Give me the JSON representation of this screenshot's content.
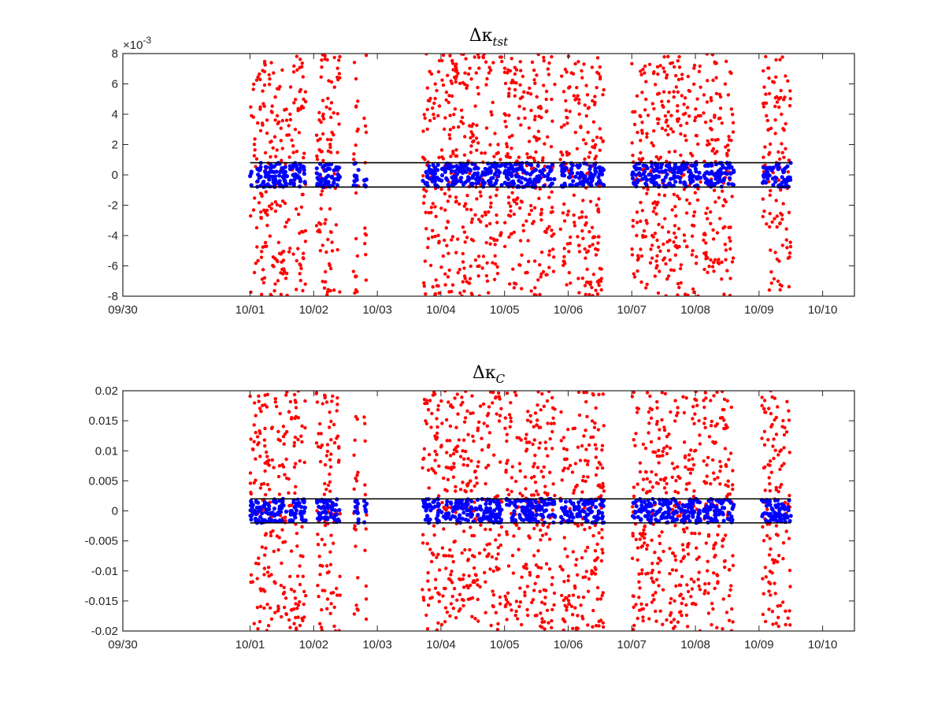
{
  "chart_data": [
    {
      "type": "scatter",
      "title": {
        "base": "Δκ",
        "sub": "tst"
      },
      "xlabel": "",
      "ylabel": "",
      "x_is_date": true,
      "xlim": [
        "09/30",
        "10/10 12:00"
      ],
      "xticks": [
        "09/30",
        "10/01",
        "10/02",
        "10/03",
        "10/04",
        "10/05",
        "10/06",
        "10/07",
        "10/08",
        "10/09",
        "10/10"
      ],
      "ylim": [
        -0.008,
        0.008
      ],
      "yticks": [
        -8,
        -6,
        -4,
        -2,
        0,
        2,
        4,
        6,
        8
      ],
      "ytick_labels": [
        "-8",
        "-6",
        "-4",
        "-2",
        "0",
        "2",
        "4",
        "6",
        "8"
      ],
      "exponent_label": {
        "base": "×10",
        "exp": "-3"
      },
      "threshold_lines": [
        -0.0008,
        0.0008
      ],
      "threshold_color": "#000000",
      "grid": false,
      "data_segments": [
        {
          "start": "10/01 00:00",
          "end": "10/01 14:00"
        },
        {
          "start": "10/01 14:30",
          "end": "10/01 21:00"
        },
        {
          "start": "10/02 01:00",
          "end": "10/02 10:00"
        },
        {
          "start": "10/02 15:00",
          "end": "10/02 17:00"
        },
        {
          "start": "10/02 19:00",
          "end": "10/02 20:00"
        },
        {
          "start": "10/03 17:00",
          "end": "10/03 23:30"
        },
        {
          "start": "10/04 00:00",
          "end": "10/04 23:00"
        },
        {
          "start": "10/05 00:00",
          "end": "10/05 19:00"
        },
        {
          "start": "10/05 21:00",
          "end": "10/06 13:30"
        },
        {
          "start": "10/07 00:00",
          "end": "10/08 02:00"
        },
        {
          "start": "10/08 03:00",
          "end": "10/08 14:30"
        },
        {
          "start": "10/09 01:00",
          "end": "10/09 12:00"
        }
      ],
      "series": [
        {
          "color": "#ff0000",
          "outside_band": true,
          "yrange": [
            -0.008,
            0.008
          ]
        },
        {
          "color": "#0000ff",
          "outside_band": false,
          "yrange": [
            -0.0008,
            0.0008
          ]
        }
      ]
    },
    {
      "type": "scatter",
      "title": {
        "base": "Δκ",
        "sub": "C"
      },
      "xlabel": "",
      "ylabel": "",
      "x_is_date": true,
      "xlim": [
        "09/30",
        "10/10 12:00"
      ],
      "xticks": [
        "09/30",
        "10/01",
        "10/02",
        "10/03",
        "10/04",
        "10/05",
        "10/06",
        "10/07",
        "10/08",
        "10/09",
        "10/10"
      ],
      "ylim": [
        -0.02,
        0.02
      ],
      "yticks": [
        -0.02,
        -0.015,
        -0.01,
        -0.005,
        0,
        0.005,
        0.01,
        0.015,
        0.02
      ],
      "ytick_labels": [
        "-0.02",
        "-0.015",
        "-0.01",
        "-0.005",
        "0",
        "0.005",
        "0.01",
        "0.015",
        "0.02"
      ],
      "threshold_lines": [
        -0.002,
        0.002
      ],
      "threshold_color": "#000000",
      "grid": false,
      "data_segments": [
        {
          "start": "10/01 00:00",
          "end": "10/01 14:00"
        },
        {
          "start": "10/01 14:30",
          "end": "10/01 21:00"
        },
        {
          "start": "10/02 01:00",
          "end": "10/02 10:00"
        },
        {
          "start": "10/02 15:00",
          "end": "10/02 17:00"
        },
        {
          "start": "10/02 19:00",
          "end": "10/02 20:00"
        },
        {
          "start": "10/03 17:00",
          "end": "10/03 23:30"
        },
        {
          "start": "10/04 00:00",
          "end": "10/04 23:00"
        },
        {
          "start": "10/05 00:00",
          "end": "10/05 19:00"
        },
        {
          "start": "10/05 21:00",
          "end": "10/06 13:30"
        },
        {
          "start": "10/07 00:00",
          "end": "10/08 02:00"
        },
        {
          "start": "10/08 03:00",
          "end": "10/08 14:30"
        },
        {
          "start": "10/09 01:00",
          "end": "10/09 12:00"
        }
      ],
      "series": [
        {
          "color": "#ff0000",
          "outside_band": true,
          "yrange": [
            -0.02,
            0.02
          ]
        },
        {
          "color": "#0000ff",
          "outside_band": false,
          "yrange": [
            -0.002,
            0.002
          ]
        }
      ]
    }
  ]
}
